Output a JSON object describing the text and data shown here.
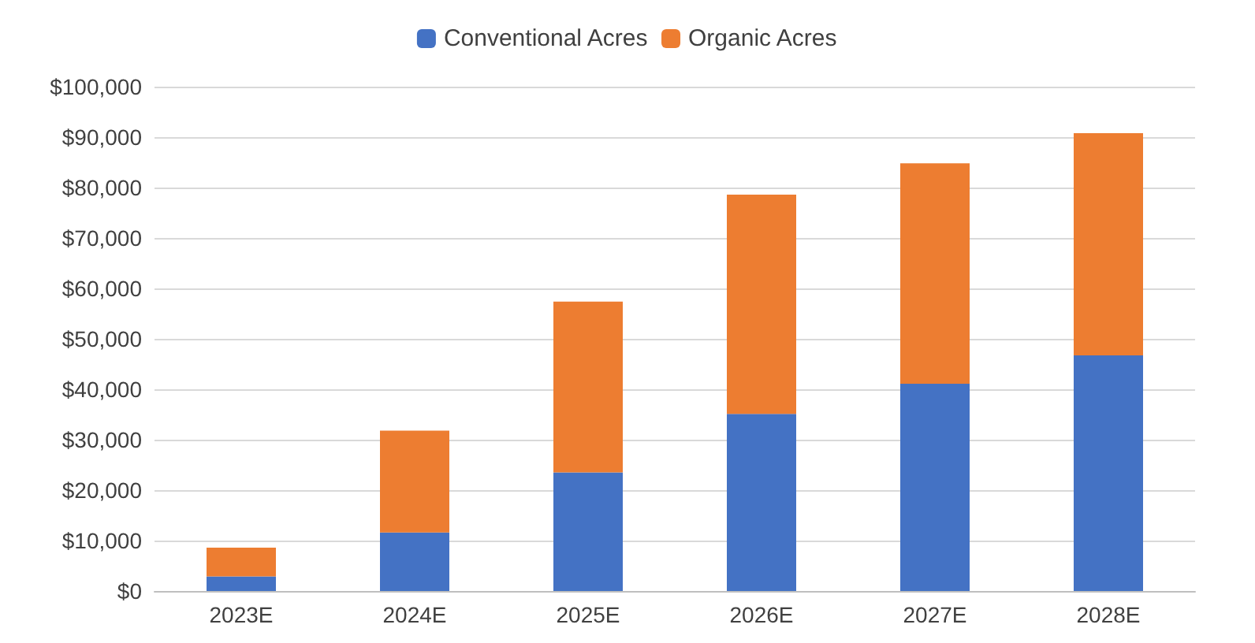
{
  "chart_data": {
    "type": "bar",
    "stacked": true,
    "categories": [
      "2023E",
      "2024E",
      "2025E",
      "2026E",
      "2027E",
      "2028E"
    ],
    "series": [
      {
        "name": "Conventional Acres",
        "color": "#4472c4",
        "values": [
          2900,
          11600,
          23500,
          35100,
          41100,
          46700
        ]
      },
      {
        "name": "Organic Acres",
        "color": "#ed7d31",
        "values": [
          5700,
          20200,
          33900,
          43500,
          43700,
          44100
        ]
      }
    ],
    "ylim": [
      0,
      100000
    ],
    "yticks": [
      {
        "value": 0,
        "label": "$0"
      },
      {
        "value": 10000,
        "label": "$10,000"
      },
      {
        "value": 20000,
        "label": "$20,000"
      },
      {
        "value": 30000,
        "label": "$30,000"
      },
      {
        "value": 40000,
        "label": "$40,000"
      },
      {
        "value": 50000,
        "label": "$50,000"
      },
      {
        "value": 60000,
        "label": "$60,000"
      },
      {
        "value": 70000,
        "label": "$70,000"
      },
      {
        "value": 80000,
        "label": "$80,000"
      },
      {
        "value": 90000,
        "label": "$90,000"
      },
      {
        "value": 100000,
        "label": "$100,000"
      }
    ],
    "grid": "y",
    "legend": "top"
  }
}
